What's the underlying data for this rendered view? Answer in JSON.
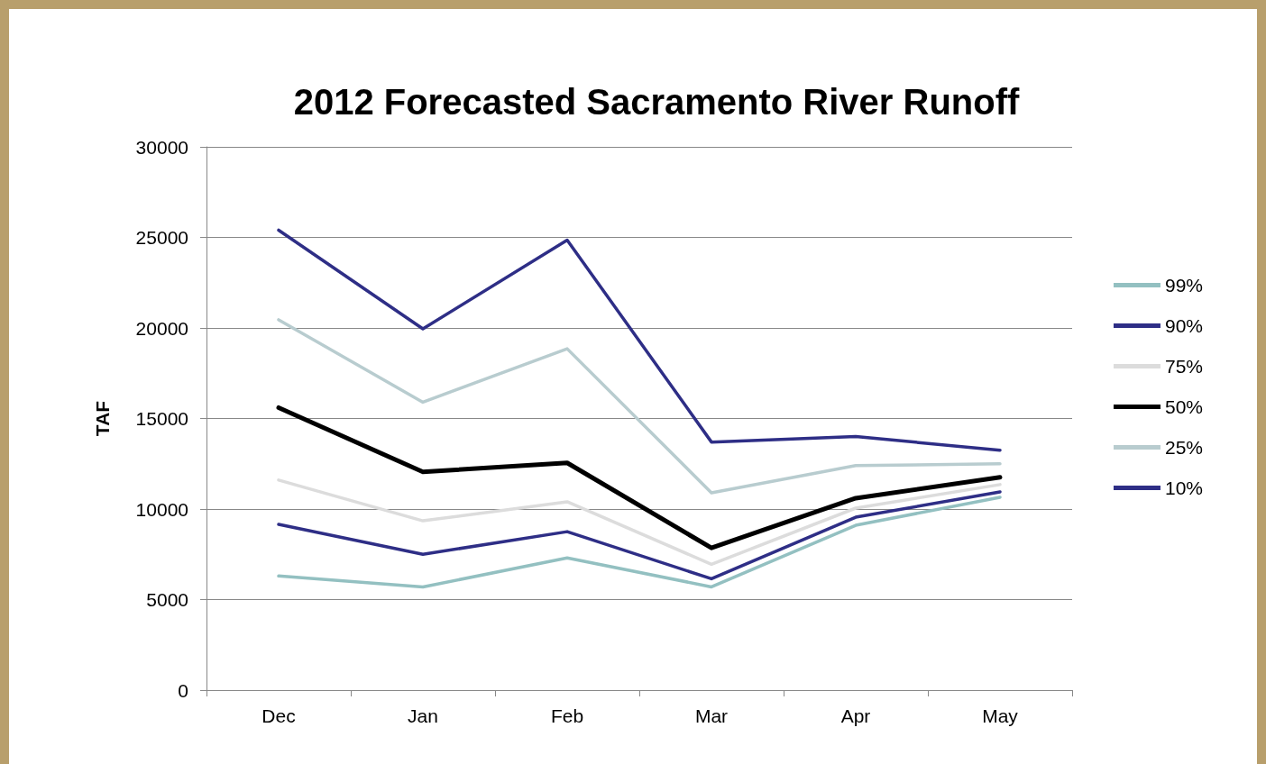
{
  "chart_data": {
    "type": "line",
    "title": "2012 Forecasted Sacramento River Runoff",
    "ylabel": "TAF",
    "categories": [
      "Dec",
      "Jan",
      "Feb",
      "Mar",
      "Apr",
      "May"
    ],
    "series": [
      {
        "name": "99%",
        "color": "#93c0c1",
        "values": [
          6300,
          5700,
          7300,
          5700,
          9100,
          10650
        ]
      },
      {
        "name": "90%",
        "color": "#2e2e86",
        "values": [
          9150,
          7500,
          8750,
          6150,
          9550,
          10950
        ]
      },
      {
        "name": "75%",
        "color": "#dcdcdc",
        "values": [
          11600,
          9350,
          10400,
          6950,
          10050,
          11350
        ]
      },
      {
        "name": "50%",
        "color": "#000000",
        "values": [
          15600,
          12050,
          12550,
          7850,
          10600,
          11750
        ]
      },
      {
        "name": "25%",
        "color": "#b8cccf",
        "values": [
          20450,
          15900,
          18850,
          10900,
          12400,
          12500
        ]
      },
      {
        "name": "10%",
        "color": "#2e2e86",
        "values": [
          25400,
          19950,
          24850,
          13700,
          14000,
          13250
        ]
      }
    ],
    "ylim": [
      0,
      30000
    ],
    "yticks": [
      0,
      5000,
      10000,
      15000,
      20000,
      25000,
      30000
    ],
    "grid": "y",
    "legend": "right",
    "marker": "none",
    "line_style": "solid"
  }
}
